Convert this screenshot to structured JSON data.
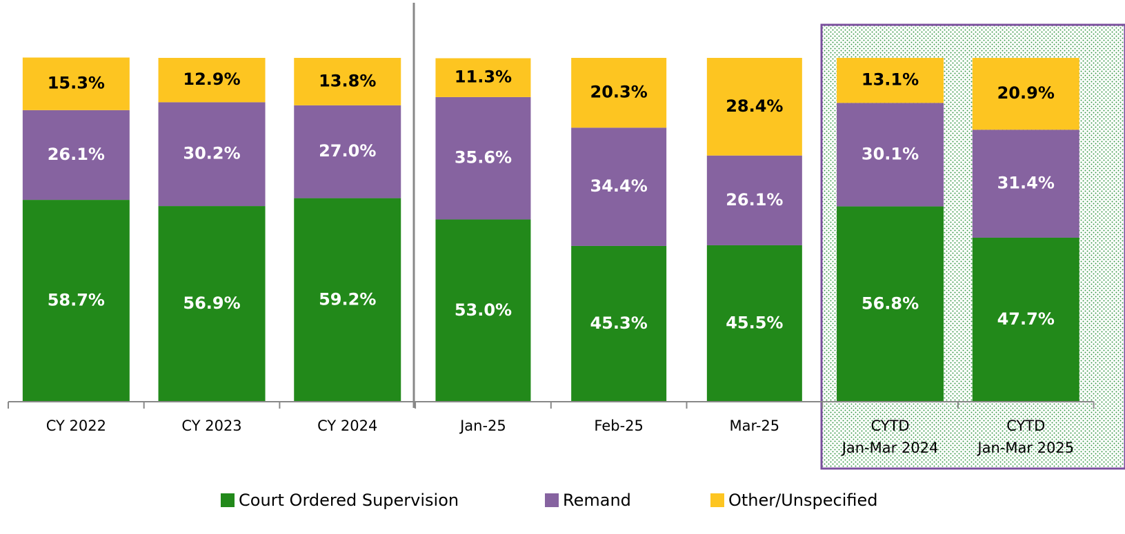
{
  "chart_data": {
    "type": "stacked-bar",
    "categories": [
      "CY 2022",
      "CY 2023",
      "CY 2024",
      "Jan-25",
      "Feb-25",
      "Mar-25",
      "CYTD\nJan-Mar 2024",
      "CYTD\nJan-Mar 2025"
    ],
    "series": [
      {
        "name": "Court Ordered Supervision",
        "color": "#22891a",
        "values": [
          58.7,
          56.9,
          59.2,
          53.0,
          45.3,
          45.5,
          56.8,
          47.7
        ],
        "value_labels": [
          "58.7%",
          "56.9%",
          "59.2%",
          "53.0%",
          "45.3%",
          "45.5%",
          "56.8%",
          "47.7%"
        ]
      },
      {
        "name": "Remand",
        "color": "#8663a0",
        "values": [
          26.1,
          30.2,
          27.0,
          35.6,
          34.4,
          26.1,
          30.1,
          31.4
        ],
        "value_labels": [
          "26.1%",
          "30.2%",
          "27.0%",
          "35.6%",
          "34.4%",
          "26.1%",
          "30.1%",
          "31.4%"
        ]
      },
      {
        "name": "Other/Unspecified",
        "color": "#fdc521",
        "values": [
          15.3,
          12.9,
          13.8,
          11.3,
          20.3,
          28.4,
          13.1,
          20.9
        ],
        "value_labels": [
          "15.3%",
          "12.9%",
          "13.8%",
          "11.3%",
          "20.3%",
          "28.4%",
          "13.1%",
          "20.9%"
        ]
      }
    ],
    "ylim": [
      0,
      100
    ]
  }
}
